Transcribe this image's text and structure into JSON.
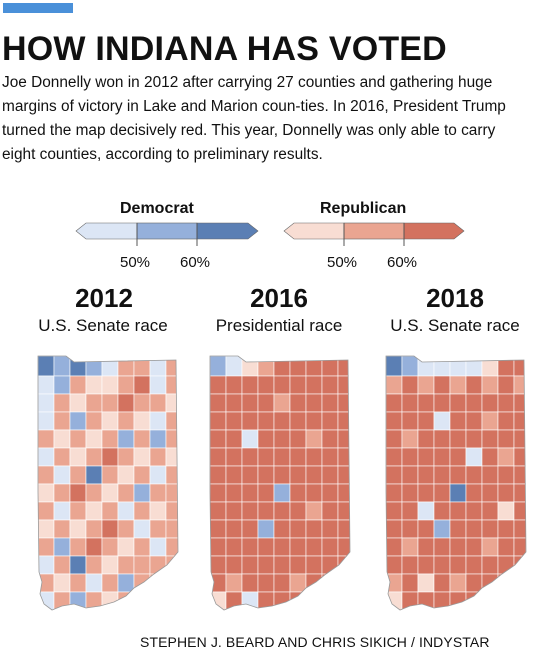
{
  "headline": "HOW INDIANA HAS VOTED",
  "description": "Joe Donnelly won in 2012 after carrying 27 counties and gathering huge margins of victory in Lake and Marion coun-ties. In 2016, President Trump turned the map decisively red. This year, Donnelly was only able to carry eight counties, according to preliminary results.",
  "legend": {
    "democrat": {
      "label": "Democrat",
      "ticks": [
        "50%",
        "60%"
      ],
      "colors": [
        "#dce6f5",
        "#95b0db",
        "#5b7fb4"
      ]
    },
    "republican": {
      "label": "Republican",
      "ticks": [
        "50%",
        "60%"
      ],
      "colors": [
        "#f8ddd3",
        "#eaa591",
        "#d3725f"
      ]
    }
  },
  "maps": [
    {
      "year": "2012",
      "race": "U.S. Senate race",
      "counties_carried_dem": 27
    },
    {
      "year": "2016",
      "race": "Presidential race"
    },
    {
      "year": "2018",
      "race": "U.S. Senate race",
      "counties_carried_dem": 8
    }
  ],
  "credit": "STEPHEN J. BEARD AND CHRIS SIKICH / INDYSTAR"
}
